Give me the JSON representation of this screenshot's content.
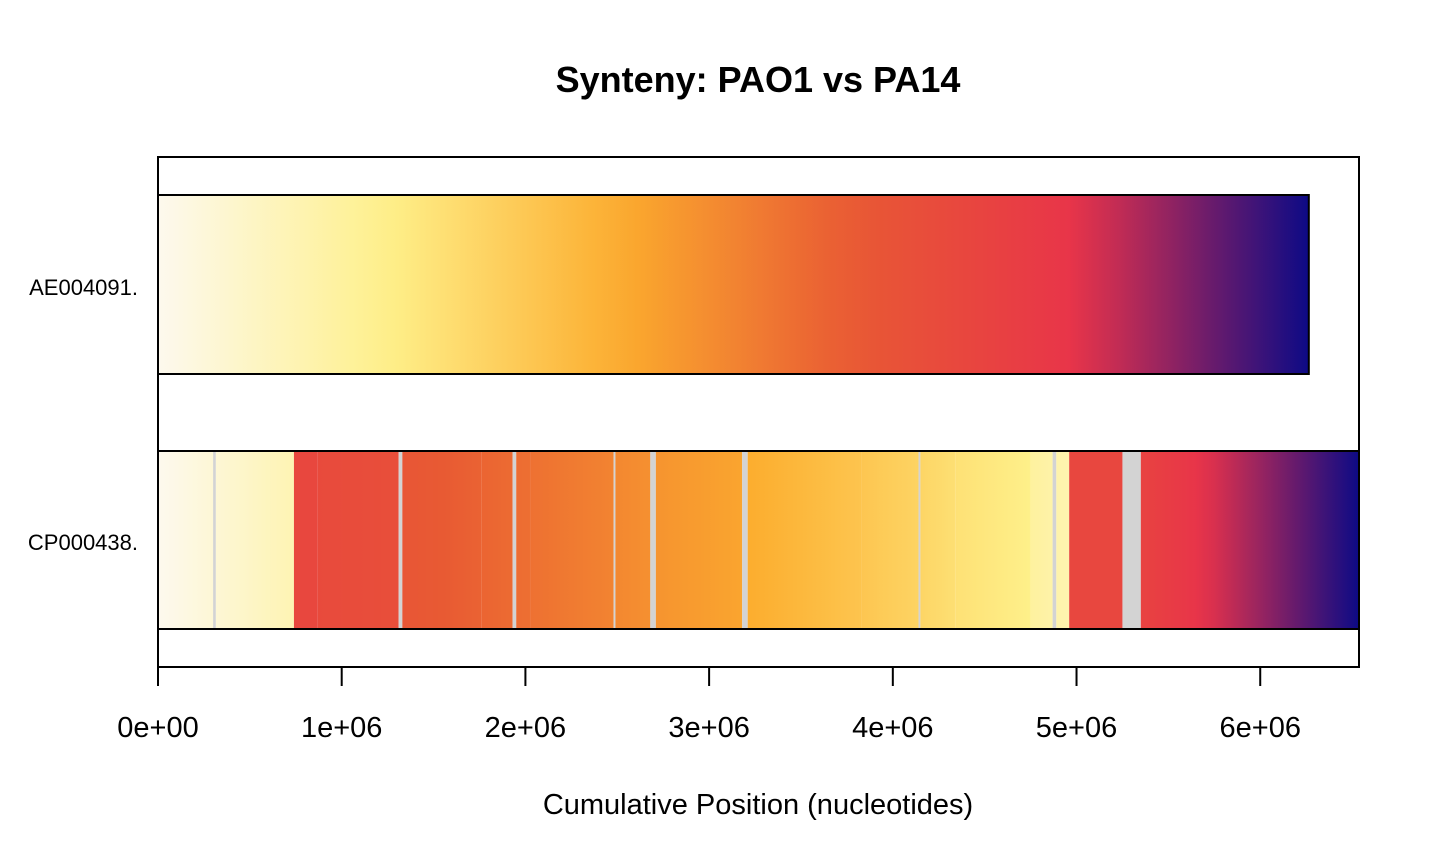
{
  "chart_data": {
    "type": "synteny",
    "title": "Synteny: PAO1 vs PA14",
    "xlabel": "Cumulative Position (nucleotides)",
    "xlim": [
      0,
      6537648
    ],
    "x_ticks": [
      0,
      1000000,
      2000000,
      3000000,
      4000000,
      5000000,
      6000000
    ],
    "x_tick_labels": [
      "0e+00",
      "1e+06",
      "2e+06",
      "3e+06",
      "4e+06",
      "5e+06",
      "6e+06"
    ],
    "palette": [
      "#fdf9ee",
      "#fef08a",
      "#fcad2e",
      "#e85a33",
      "#e8334a",
      "#0d0a85"
    ],
    "unaligned_color": "#d3d3d3",
    "genomes": [
      {
        "name": "AE004091.",
        "length": 6264404,
        "gradient": "continuous"
      },
      {
        "name": "CP000438.",
        "length": 6537648,
        "blocks": [
          {
            "start": 0,
            "end": 300000,
            "color_start": 0.0,
            "color_end": 0.048
          },
          {
            "start": 300000,
            "end": 315000,
            "unaligned": true
          },
          {
            "start": 315000,
            "end": 740000,
            "color_start": 0.05,
            "color_end": 0.118
          },
          {
            "start": 740000,
            "end": 870000,
            "color_start": 0.695,
            "color_end": 0.695
          },
          {
            "start": 870000,
            "end": 1310000,
            "color_start": 0.68,
            "color_end": 0.66
          },
          {
            "start": 1310000,
            "end": 1330000,
            "unaligned": true
          },
          {
            "start": 1330000,
            "end": 1760000,
            "color_start": 0.62,
            "color_end": 0.58
          },
          {
            "start": 1760000,
            "end": 1930000,
            "color_start": 0.575,
            "color_end": 0.56
          },
          {
            "start": 1930000,
            "end": 1950000,
            "unaligned": true
          },
          {
            "start": 1950000,
            "end": 2030000,
            "color_start": 0.555,
            "color_end": 0.55
          },
          {
            "start": 2030000,
            "end": 2480000,
            "color_start": 0.545,
            "color_end": 0.5
          },
          {
            "start": 2480000,
            "end": 2490000,
            "unaligned": true
          },
          {
            "start": 2490000,
            "end": 2680000,
            "color_start": 0.49,
            "color_end": 0.47
          },
          {
            "start": 2680000,
            "end": 2710000,
            "unaligned": true
          },
          {
            "start": 2710000,
            "end": 3180000,
            "color_start": 0.46,
            "color_end": 0.42
          },
          {
            "start": 3180000,
            "end": 3210000,
            "unaligned": true
          },
          {
            "start": 3210000,
            "end": 3830000,
            "color_start": 0.4,
            "color_end": 0.33
          },
          {
            "start": 3830000,
            "end": 4140000,
            "color_start": 0.325,
            "color_end": 0.285
          },
          {
            "start": 4140000,
            "end": 4150000,
            "unaligned": true
          },
          {
            "start": 4150000,
            "end": 4340000,
            "color_start": 0.28,
            "color_end": 0.25
          },
          {
            "start": 4340000,
            "end": 4750000,
            "color_start": 0.245,
            "color_end": 0.2
          },
          {
            "start": 4750000,
            "end": 4870000,
            "color_start": 0.16,
            "color_end": 0.14
          },
          {
            "start": 4870000,
            "end": 4890000,
            "unaligned": true
          },
          {
            "start": 4890000,
            "end": 4960000,
            "color_start": 0.135,
            "color_end": 0.125
          },
          {
            "start": 4960000,
            "end": 5250000,
            "color_start": 0.7,
            "color_end": 0.7
          },
          {
            "start": 5250000,
            "end": 5350000,
            "unaligned": true
          },
          {
            "start": 5350000,
            "end": 6537648,
            "color_start": 0.72,
            "color_end": 1.0
          }
        ]
      }
    ],
    "grid": false,
    "legend": "none"
  }
}
